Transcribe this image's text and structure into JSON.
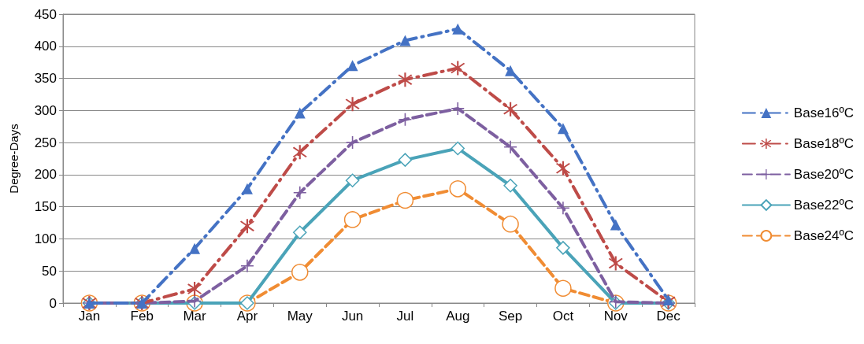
{
  "chart_data": {
    "type": "line",
    "ylabel": "Degree-Days",
    "categories": [
      "Jan",
      "Feb",
      "Mar",
      "Apr",
      "May",
      "Jun",
      "Jul",
      "Aug",
      "Sep",
      "Oct",
      "Nov",
      "Dec"
    ],
    "ylim": [
      0,
      450
    ],
    "yticks": [
      0,
      50,
      100,
      150,
      200,
      250,
      300,
      350,
      400,
      450
    ],
    "grid": "y",
    "legend": "right",
    "series": [
      {
        "name": "Base16ºC",
        "color": "#4472c4",
        "marker": "triangle",
        "line_style": "dashdot",
        "values": [
          0,
          0,
          85,
          178,
          296,
          370,
          409,
          427,
          362,
          272,
          122,
          5
        ]
      },
      {
        "name": "Base18ºC",
        "color": "#be4b48",
        "marker": "star",
        "line_style": "dashdot",
        "values": [
          0,
          0,
          22,
          120,
          235,
          310,
          348,
          366,
          302,
          210,
          62,
          2
        ]
      },
      {
        "name": "Base20ºC",
        "color": "#7d5fa0",
        "marker": "cross",
        "line_style": "dashed",
        "values": [
          0,
          0,
          3,
          58,
          172,
          250,
          286,
          303,
          243,
          148,
          2,
          0
        ]
      },
      {
        "name": "Base22ºC",
        "color": "#4aa3b8",
        "marker": "diamond",
        "line_style": "solid",
        "values": [
          0,
          0,
          0,
          0,
          110,
          191,
          223,
          241,
          183,
          86,
          0,
          0
        ]
      },
      {
        "name": "Base24ºC",
        "color": "#f08c33",
        "marker": "circle",
        "line_style": "dashed",
        "values": [
          0,
          0,
          0,
          0,
          48,
          130,
          160,
          178,
          123,
          23,
          0,
          0
        ]
      }
    ]
  }
}
